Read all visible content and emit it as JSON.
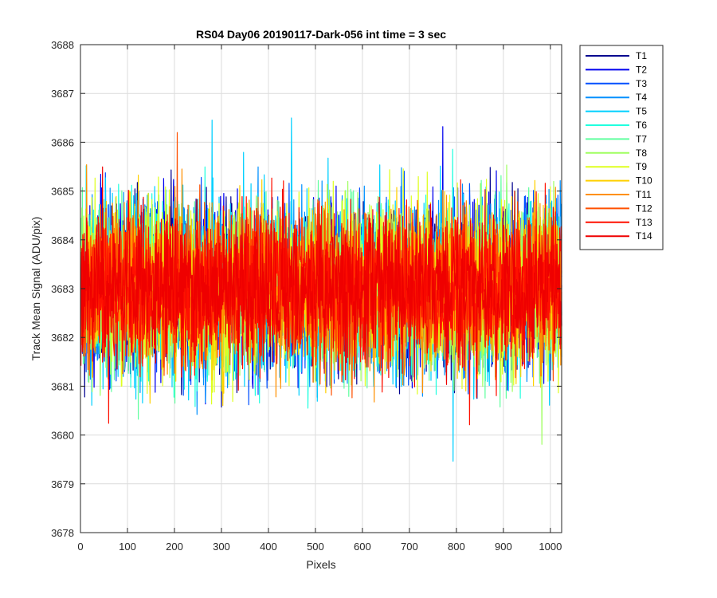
{
  "chart_data": {
    "type": "line",
    "title": "RS04 Day06 20190117-Dark-056 int time = 3 sec",
    "xlabel": "Pixels",
    "ylabel": "Track Mean Signal (ADU/pix)",
    "xlim": [
      0,
      1024
    ],
    "ylim": [
      3678,
      3688
    ],
    "x_ticks": [
      0,
      100,
      200,
      300,
      400,
      500,
      600,
      700,
      800,
      900,
      1000
    ],
    "y_ticks": [
      3678,
      3679,
      3680,
      3681,
      3682,
      3683,
      3684,
      3685,
      3686,
      3687,
      3688
    ],
    "grid": true,
    "legend_position": "outside-top-right",
    "x_points": 1024,
    "mean": 3683.0,
    "series": [
      {
        "name": "T1",
        "color": "#00008f",
        "amplitude": 1.45,
        "seed": 11
      },
      {
        "name": "T2",
        "color": "#0000ef",
        "amplitude": 1.45,
        "seed": 23
      },
      {
        "name": "T3",
        "color": "#0050ff",
        "amplitude": 1.45,
        "seed": 37
      },
      {
        "name": "T4",
        "color": "#0090ff",
        "amplitude": 1.5,
        "seed": 41
      },
      {
        "name": "T5",
        "color": "#00d0ff",
        "amplitude": 1.5,
        "seed": 53
      },
      {
        "name": "T6",
        "color": "#20ffdf",
        "amplitude": 1.45,
        "seed": 67
      },
      {
        "name": "T7",
        "color": "#60ff9f",
        "amplitude": 1.45,
        "seed": 71
      },
      {
        "name": "T8",
        "color": "#9fff60",
        "amplitude": 1.45,
        "seed": 83
      },
      {
        "name": "T9",
        "color": "#dfff20",
        "amplitude": 1.45,
        "seed": 97
      },
      {
        "name": "T10",
        "color": "#ffd000",
        "amplitude": 1.4,
        "seed": 101
      },
      {
        "name": "T11",
        "color": "#ff9000",
        "amplitude": 1.35,
        "seed": 113
      },
      {
        "name": "T12",
        "color": "#ff5000",
        "amplitude": 1.3,
        "seed": 127
      },
      {
        "name": "T13",
        "color": "#ff1000",
        "amplitude": 1.3,
        "seed": 131
      },
      {
        "name": "T14",
        "color": "#ef0000",
        "amplitude": 1.25,
        "seed": 139
      }
    ]
  }
}
